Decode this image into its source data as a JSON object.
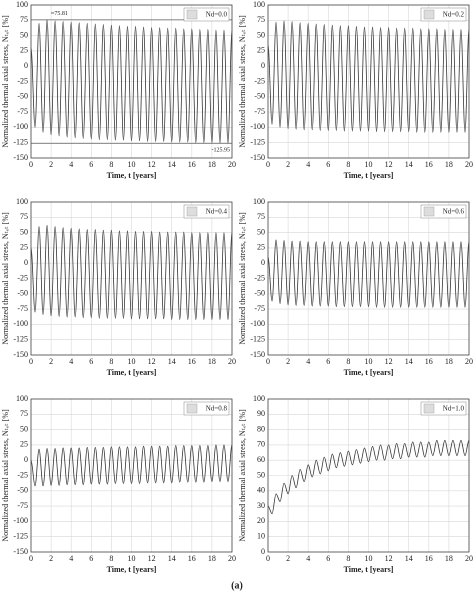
{
  "chart_data": [
    {
      "type": "line",
      "xlabel": "Time, t [years]",
      "ylabel": "Normalized thermal axial stress, Nₜₒₜ [%]",
      "x": [
        0,
        0.4,
        0.8,
        1.2,
        1.6,
        2,
        2.4,
        2.8,
        3.2,
        3.6,
        4,
        4.4,
        4.8,
        5.2,
        5.6,
        6,
        6.4,
        6.8,
        7.2,
        7.6,
        8,
        8.4,
        8.8,
        9.2,
        9.6,
        10,
        10.4,
        10.8,
        11.2,
        11.6,
        12,
        12.4,
        12.8,
        13.2,
        13.6,
        14,
        14.4,
        14.8,
        15.2,
        15.6,
        16,
        16.4,
        16.8,
        17.2,
        17.6,
        18,
        18.4,
        18.8,
        19.2,
        19.6,
        20
      ],
      "series": [
        {
          "name": "Nd=0.0",
          "color": "#333333",
          "values": [
            30,
            -100,
            70,
            -108,
            75.81,
            -112,
            74,
            -114,
            73,
            -116,
            72,
            -117,
            71,
            -118,
            70,
            -119,
            69,
            -120,
            68,
            -120,
            67,
            -121,
            66,
            -121,
            65,
            -122,
            65,
            -122,
            64,
            -123,
            63,
            -123,
            63,
            -123,
            62,
            -124,
            62,
            -124,
            61,
            -124,
            61,
            -125,
            60,
            -125,
            60,
            -125,
            59,
            -125.5,
            59,
            -125.95,
            58
          ]
        }
      ],
      "annotations": [
        {
          "text": "≈75.81",
          "x": 1.6,
          "y": 75.81
        },
        {
          "text": "-125.95",
          "x": 19.6,
          "y": -125.95
        }
      ],
      "xlim": [
        0,
        20
      ],
      "xticks": [
        0,
        2,
        4,
        6,
        8,
        10,
        12,
        14,
        16,
        18,
        20
      ],
      "ylim": [
        -150,
        100
      ],
      "yticks": [
        -150,
        -125,
        -100,
        -75,
        -50,
        -25,
        0,
        25,
        50,
        75,
        100
      ],
      "grid": true
    },
    {
      "type": "line",
      "xlabel": "Time, t [years]",
      "ylabel": "Normalized thermal axial stress, Nₜₒₜ [%]",
      "x": [
        0,
        0.4,
        0.8,
        1.2,
        1.6,
        2,
        2.4,
        2.8,
        3.2,
        3.6,
        4,
        4.4,
        4.8,
        5.2,
        5.6,
        6,
        6.4,
        6.8,
        7.2,
        7.6,
        8,
        8.4,
        8.8,
        9.2,
        9.6,
        10,
        10.4,
        10.8,
        11.2,
        11.6,
        12,
        12.4,
        12.8,
        13.2,
        13.6,
        14,
        14.4,
        14.8,
        15.2,
        15.6,
        16,
        16.4,
        16.8,
        17.2,
        17.6,
        18,
        18.4,
        18.8,
        19.2,
        19.6,
        20
      ],
      "series": [
        {
          "name": "Nd=0.2",
          "color": "#333333",
          "values": [
            35,
            -95,
            72,
            -100,
            74,
            -102,
            73,
            -103,
            71,
            -104,
            70,
            -104,
            69,
            -105,
            68,
            -105,
            67,
            -105,
            66,
            -106,
            66,
            -106,
            65,
            -106,
            64,
            -106,
            64,
            -107,
            63,
            -107,
            63,
            -107,
            62,
            -107,
            62,
            -107,
            62,
            -108,
            61,
            -108,
            61,
            -108,
            61,
            -108,
            60,
            -108,
            60,
            -108,
            60,
            -108,
            60
          ]
        }
      ],
      "xlim": [
        0,
        20
      ],
      "xticks": [
        0,
        2,
        4,
        6,
        8,
        10,
        12,
        14,
        16,
        18,
        20
      ],
      "ylim": [
        -150,
        100
      ],
      "yticks": [
        -150,
        -125,
        -100,
        -75,
        -50,
        -25,
        0,
        25,
        50,
        75,
        100
      ],
      "grid": true
    },
    {
      "type": "line",
      "xlabel": "Time, t [years]",
      "ylabel": "Normalized thermal axial stress, Nₜₒₜ [%]",
      "x": [
        0,
        0.4,
        0.8,
        1.2,
        1.6,
        2,
        2.4,
        2.8,
        3.2,
        3.6,
        4,
        4.4,
        4.8,
        5.2,
        5.6,
        6,
        6.4,
        6.8,
        7.2,
        7.6,
        8,
        8.4,
        8.8,
        9.2,
        9.6,
        10,
        10.4,
        10.8,
        11.2,
        11.6,
        12,
        12.4,
        12.8,
        13.2,
        13.6,
        14,
        14.4,
        14.8,
        15.2,
        15.6,
        16,
        16.4,
        16.8,
        17.2,
        17.6,
        18,
        18.4,
        18.8,
        19.2,
        19.6,
        20
      ],
      "series": [
        {
          "name": "Nd=0.4",
          "color": "#333333",
          "values": [
            25,
            -80,
            60,
            -84,
            62,
            -86,
            60,
            -87,
            58,
            -88,
            57,
            -88,
            56,
            -89,
            55,
            -89,
            55,
            -90,
            54,
            -90,
            54,
            -90,
            53,
            -90,
            53,
            -91,
            52,
            -91,
            52,
            -91,
            52,
            -91,
            51,
            -91,
            51,
            -92,
            51,
            -92,
            51,
            -92,
            50,
            -92,
            50,
            -92,
            50,
            -92,
            50,
            -92,
            50,
            -92,
            50
          ]
        }
      ],
      "xlim": [
        0,
        20
      ],
      "xticks": [
        0,
        2,
        4,
        6,
        8,
        10,
        12,
        14,
        16,
        18,
        20
      ],
      "ylim": [
        -150,
        100
      ],
      "yticks": [
        -150,
        -125,
        -100,
        -75,
        -50,
        -25,
        0,
        25,
        50,
        75,
        100
      ],
      "grid": true
    },
    {
      "type": "line",
      "xlabel": "Time, t [years]",
      "ylabel": "Normalized thermal axial stress, Nₜₒₜ [%]",
      "x": [
        0,
        0.4,
        0.8,
        1.2,
        1.6,
        2,
        2.4,
        2.8,
        3.2,
        3.6,
        4,
        4.4,
        4.8,
        5.2,
        5.6,
        6,
        6.4,
        6.8,
        7.2,
        7.6,
        8,
        8.4,
        8.8,
        9.2,
        9.6,
        10,
        10.4,
        10.8,
        11.2,
        11.6,
        12,
        12.4,
        12.8,
        13.2,
        13.6,
        14,
        14.4,
        14.8,
        15.2,
        15.6,
        16,
        16.4,
        16.8,
        17.2,
        17.6,
        18,
        18.4,
        18.8,
        19.2,
        19.6,
        20
      ],
      "series": [
        {
          "name": "Nd=0.6",
          "color": "#333333",
          "values": [
            10,
            -62,
            38,
            -66,
            37,
            -68,
            36,
            -69,
            36,
            -69,
            35,
            -70,
            35,
            -70,
            35,
            -70,
            35,
            -71,
            35,
            -71,
            35,
            -71,
            35,
            -71,
            35,
            -71,
            35,
            -72,
            35,
            -72,
            35,
            -72,
            35,
            -72,
            35,
            -72,
            35,
            -72,
            35,
            -72,
            35,
            -72,
            35,
            -72,
            35,
            -72,
            35,
            -72,
            35,
            -72,
            35
          ]
        }
      ],
      "xlim": [
        0,
        20
      ],
      "xticks": [
        0,
        2,
        4,
        6,
        8,
        10,
        12,
        14,
        16,
        18,
        20
      ],
      "ylim": [
        -150,
        100
      ],
      "yticks": [
        -150,
        -125,
        -100,
        -75,
        -50,
        -25,
        0,
        25,
        50,
        75,
        100
      ],
      "grid": true
    },
    {
      "type": "line",
      "xlabel": "Time, t [years]",
      "ylabel": "Normalized thermal axial stress, Nₜₒₜ [%]",
      "x": [
        0,
        0.4,
        0.8,
        1.2,
        1.6,
        2,
        2.4,
        2.8,
        3.2,
        3.6,
        4,
        4.4,
        4.8,
        5.2,
        5.6,
        6,
        6.4,
        6.8,
        7.2,
        7.6,
        8,
        8.4,
        8.8,
        9.2,
        9.6,
        10,
        10.4,
        10.8,
        11.2,
        11.6,
        12,
        12.4,
        12.8,
        13.2,
        13.6,
        14,
        14.4,
        14.8,
        15.2,
        15.6,
        16,
        16.4,
        16.8,
        17.2,
        17.6,
        18,
        18.4,
        18.8,
        19.2,
        19.6,
        20
      ],
      "series": [
        {
          "name": "Nd=0.8",
          "color": "#333333",
          "values": [
            0,
            -42,
            18,
            -42,
            19,
            -41,
            19,
            -41,
            20,
            -40,
            20,
            -40,
            20,
            -40,
            21,
            -39,
            21,
            -39,
            21,
            -39,
            22,
            -38,
            22,
            -38,
            22,
            -38,
            22,
            -38,
            23,
            -37,
            23,
            -37,
            23,
            -37,
            23,
            -37,
            24,
            -36,
            24,
            -36,
            24,
            -36,
            24,
            -36,
            24,
            -35,
            25,
            -35,
            25,
            -35,
            25
          ]
        }
      ],
      "xlim": [
        0,
        20
      ],
      "xticks": [
        0,
        2,
        4,
        6,
        8,
        10,
        12,
        14,
        16,
        18,
        20
      ],
      "ylim": [
        -150,
        100
      ],
      "yticks": [
        -150,
        -125,
        -100,
        -75,
        -50,
        -25,
        0,
        25,
        50,
        75,
        100
      ],
      "grid": true
    },
    {
      "type": "line",
      "xlabel": "Time, t [years]",
      "ylabel": "Normalized thermal axial stress, Nₜₒₜ [%]",
      "x": [
        0,
        0.4,
        0.8,
        1.2,
        1.6,
        2,
        2.4,
        2.8,
        3.2,
        3.6,
        4,
        4.4,
        4.8,
        5.2,
        5.6,
        6,
        6.4,
        6.8,
        7.2,
        7.6,
        8,
        8.4,
        8.8,
        9.2,
        9.6,
        10,
        10.4,
        10.8,
        11.2,
        11.6,
        12,
        12.4,
        12.8,
        13.2,
        13.6,
        14,
        14.4,
        14.8,
        15.2,
        15.6,
        16,
        16.4,
        16.8,
        17.2,
        17.6,
        18,
        18.4,
        18.8,
        19.2,
        19.6,
        20
      ],
      "series": [
        {
          "name": "Nd=1.0",
          "color": "#333333",
          "values": [
            30,
            25,
            38,
            33,
            45,
            38,
            50,
            42,
            54,
            46,
            57,
            49,
            60,
            51,
            62,
            53,
            64,
            55,
            65,
            56,
            66,
            57,
            67,
            58,
            68,
            59,
            69,
            60,
            70,
            60,
            70,
            61,
            71,
            61,
            71,
            62,
            72,
            62,
            72,
            62,
            72,
            63,
            73,
            63,
            73,
            63,
            73,
            63,
            73,
            63,
            73
          ]
        }
      ],
      "xlim": [
        0,
        20
      ],
      "xticks": [
        0,
        2,
        4,
        6,
        8,
        10,
        12,
        14,
        16,
        18,
        20
      ],
      "ylim": [
        0,
        100
      ],
      "yticks": [
        0,
        10,
        20,
        30,
        40,
        50,
        60,
        70,
        80,
        90,
        100
      ],
      "grid": true
    }
  ],
  "figure_label": "(a)"
}
